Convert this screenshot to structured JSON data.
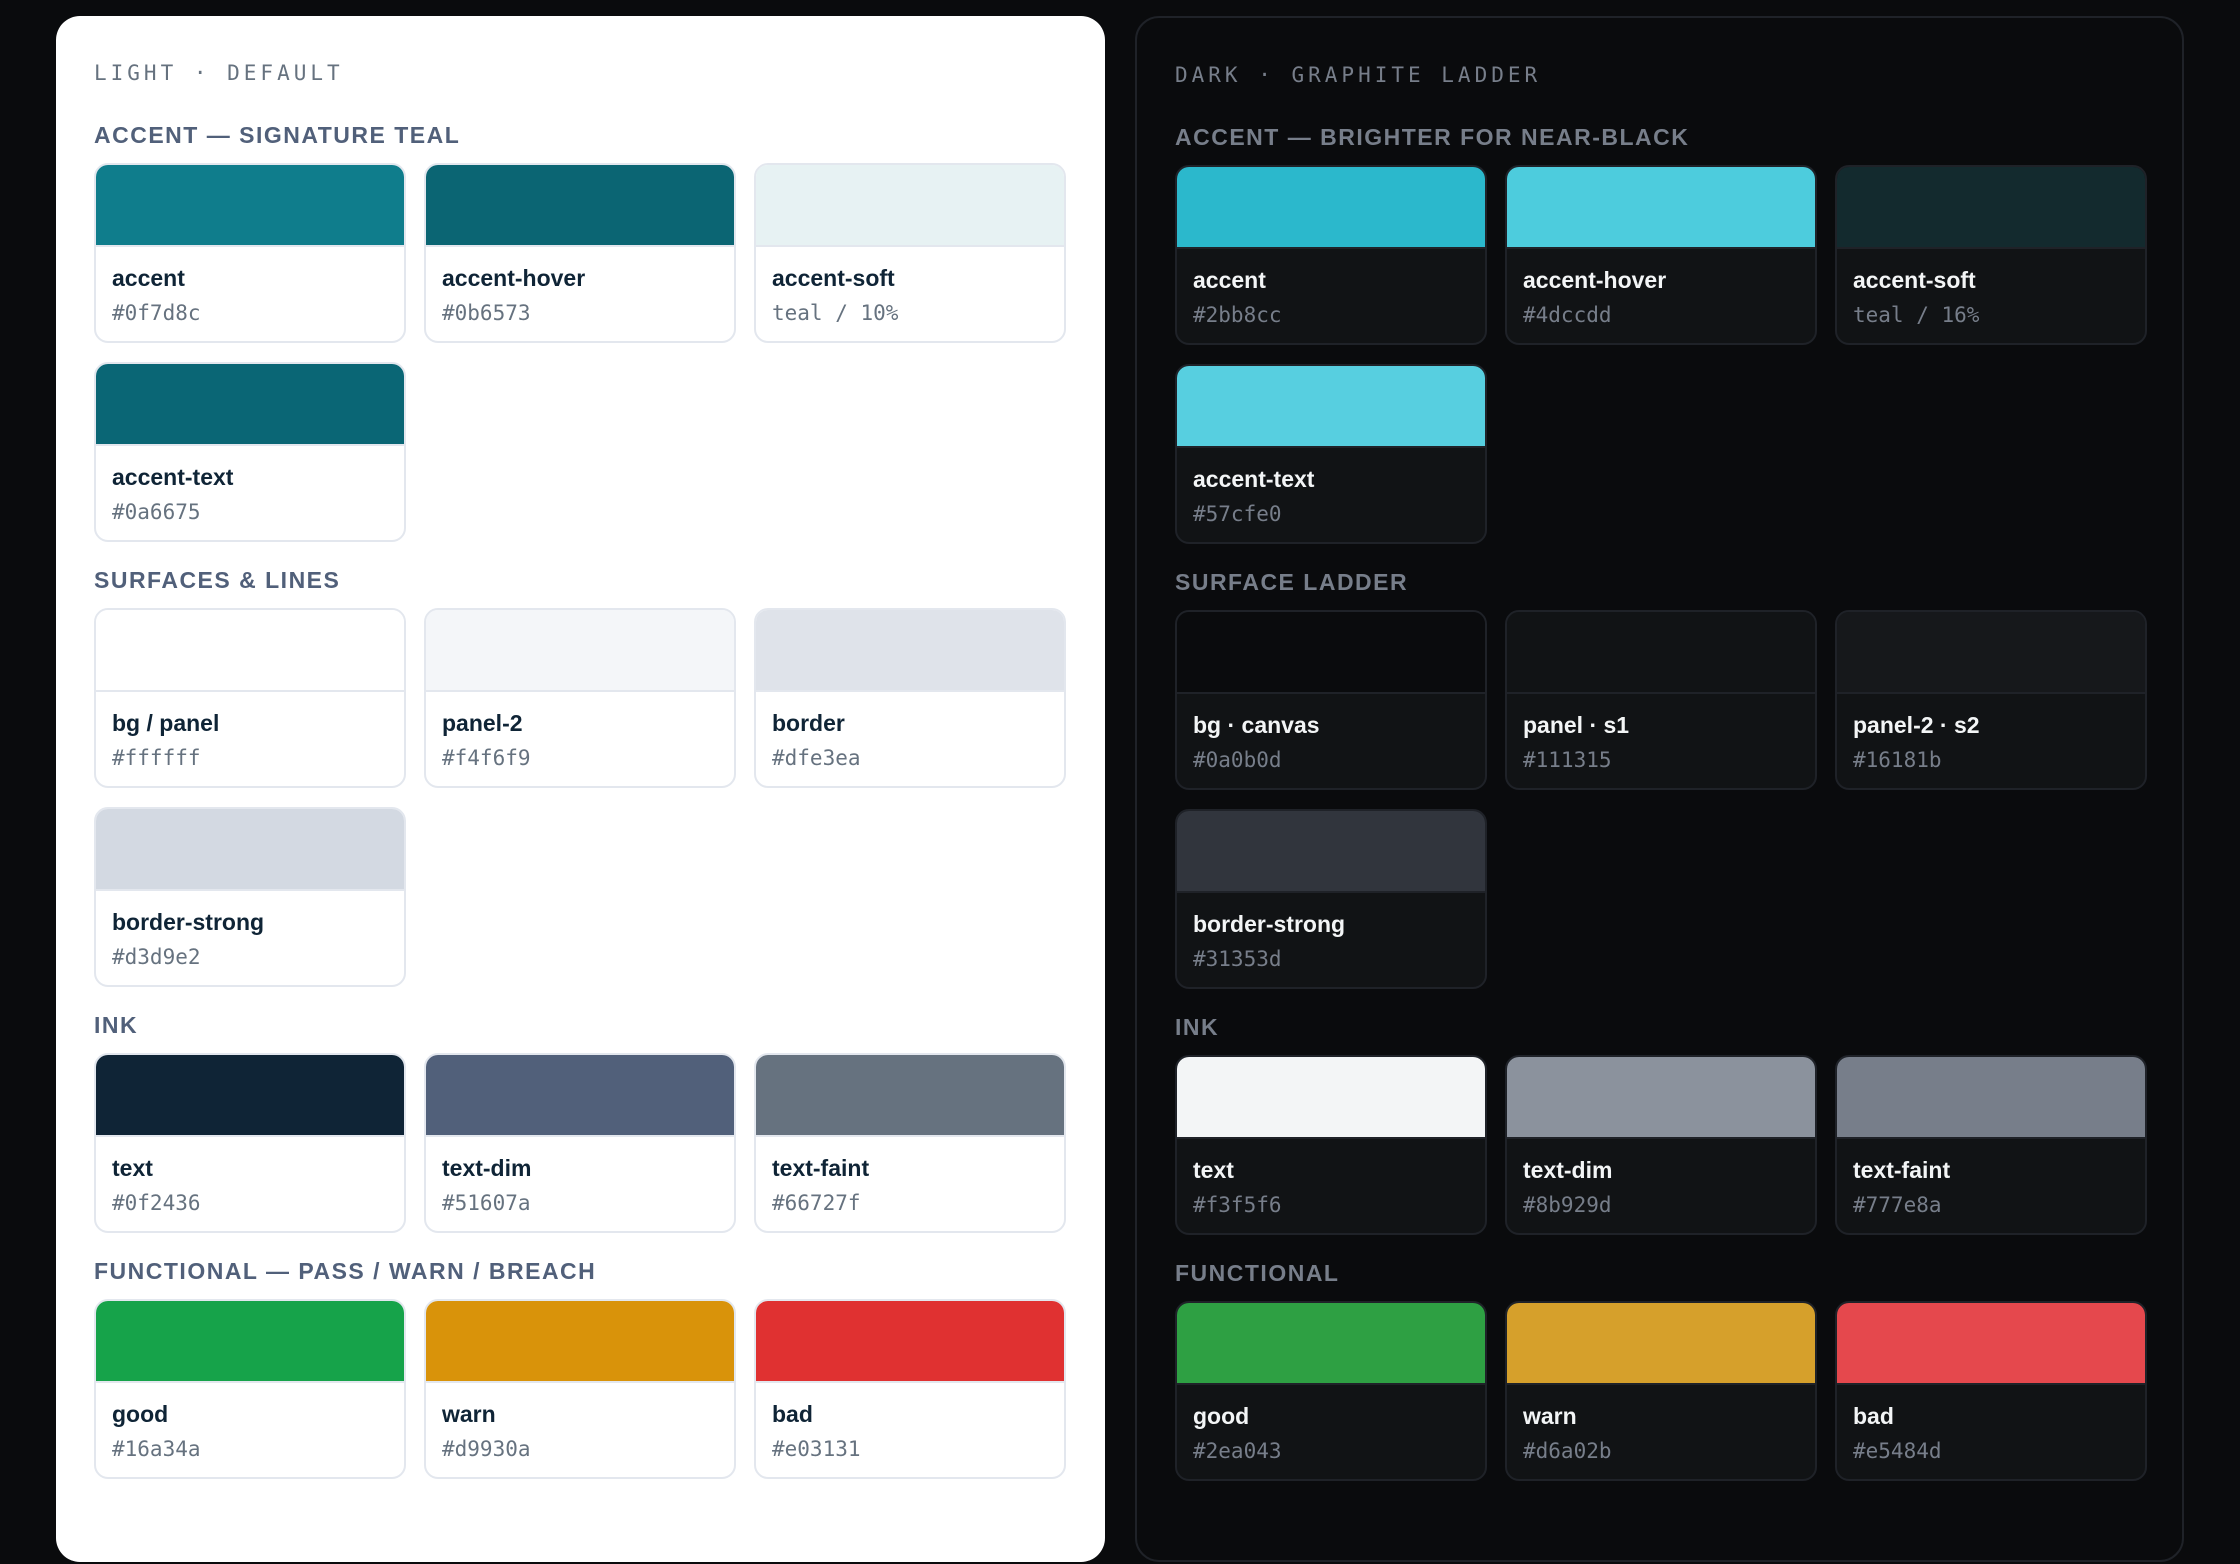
{
  "light": {
    "eyebrow": "LIGHT · DEFAULT",
    "sections": [
      {
        "title": "ACCENT — SIGNATURE TEAL",
        "swatches": [
          {
            "name": "accent",
            "value": "#0f7d8c",
            "color": "#0f7d8c"
          },
          {
            "name": "accent-hover",
            "value": "#0b6573",
            "color": "#0b6573"
          },
          {
            "name": "accent-soft",
            "value": "teal / 10%",
            "color": "#e7f2f3"
          },
          {
            "name": "accent-text",
            "value": "#0a6675",
            "color": "#0a6675"
          }
        ]
      },
      {
        "title": "SURFACES & LINES",
        "swatches": [
          {
            "name": "bg / panel",
            "value": "#ffffff",
            "color": "#ffffff"
          },
          {
            "name": "panel-2",
            "value": "#f4f6f9",
            "color": "#f4f6f9"
          },
          {
            "name": "border",
            "value": "#dfe3ea",
            "color": "#dfe3ea"
          },
          {
            "name": "border-strong",
            "value": "#d3d9e2",
            "color": "#d3d9e2"
          }
        ]
      },
      {
        "title": "INK",
        "swatches": [
          {
            "name": "text",
            "value": "#0f2436",
            "color": "#0f2436"
          },
          {
            "name": "text-dim",
            "value": "#51607a",
            "color": "#51607a"
          },
          {
            "name": "text-faint",
            "value": "#66727f",
            "color": "#66727f"
          }
        ]
      },
      {
        "title": "FUNCTIONAL — PASS / WARN / BREACH",
        "swatches": [
          {
            "name": "good",
            "value": "#16a34a",
            "color": "#16a34a"
          },
          {
            "name": "warn",
            "value": "#d9930a",
            "color": "#d9930a"
          },
          {
            "name": "bad",
            "value": "#e03131",
            "color": "#e03131"
          }
        ]
      }
    ]
  },
  "dark": {
    "eyebrow": "DARK · GRAPHITE LADDER",
    "sections": [
      {
        "title": "ACCENT — BRIGHTER FOR NEAR-BLACK",
        "swatches": [
          {
            "name": "accent",
            "value": "#2bb8cc",
            "color": "#2bb8cc"
          },
          {
            "name": "accent-hover",
            "value": "#4dccdd",
            "color": "#4dccdd"
          },
          {
            "name": "accent-soft",
            "value": "teal / 16%",
            "color": "#132a2e"
          },
          {
            "name": "accent-text",
            "value": "#57cfe0",
            "color": "#57cfe0"
          }
        ]
      },
      {
        "title": "SURFACE LADDER",
        "swatches": [
          {
            "name": "bg · canvas",
            "value": "#0a0b0d",
            "color": "#0a0b0d"
          },
          {
            "name": "panel · s1",
            "value": "#111315",
            "color": "#111315"
          },
          {
            "name": "panel-2 · s2",
            "value": "#16181b",
            "color": "#16181b"
          },
          {
            "name": "border-strong",
            "value": "#31353d",
            "color": "#31353d"
          }
        ]
      },
      {
        "title": "INK",
        "swatches": [
          {
            "name": "text",
            "value": "#f3f5f6",
            "color": "#f3f5f6"
          },
          {
            "name": "text-dim",
            "value": "#8b929d",
            "color": "#8b929d"
          },
          {
            "name": "text-faint",
            "value": "#777e8a",
            "color": "#777e8a"
          }
        ]
      },
      {
        "title": "FUNCTIONAL",
        "swatches": [
          {
            "name": "good",
            "value": "#2ea043",
            "color": "#2ea043"
          },
          {
            "name": "warn",
            "value": "#d6a02b",
            "color": "#d6a02b"
          },
          {
            "name": "bad",
            "value": "#e5484d",
            "color": "#e5484d"
          }
        ]
      }
    ]
  }
}
